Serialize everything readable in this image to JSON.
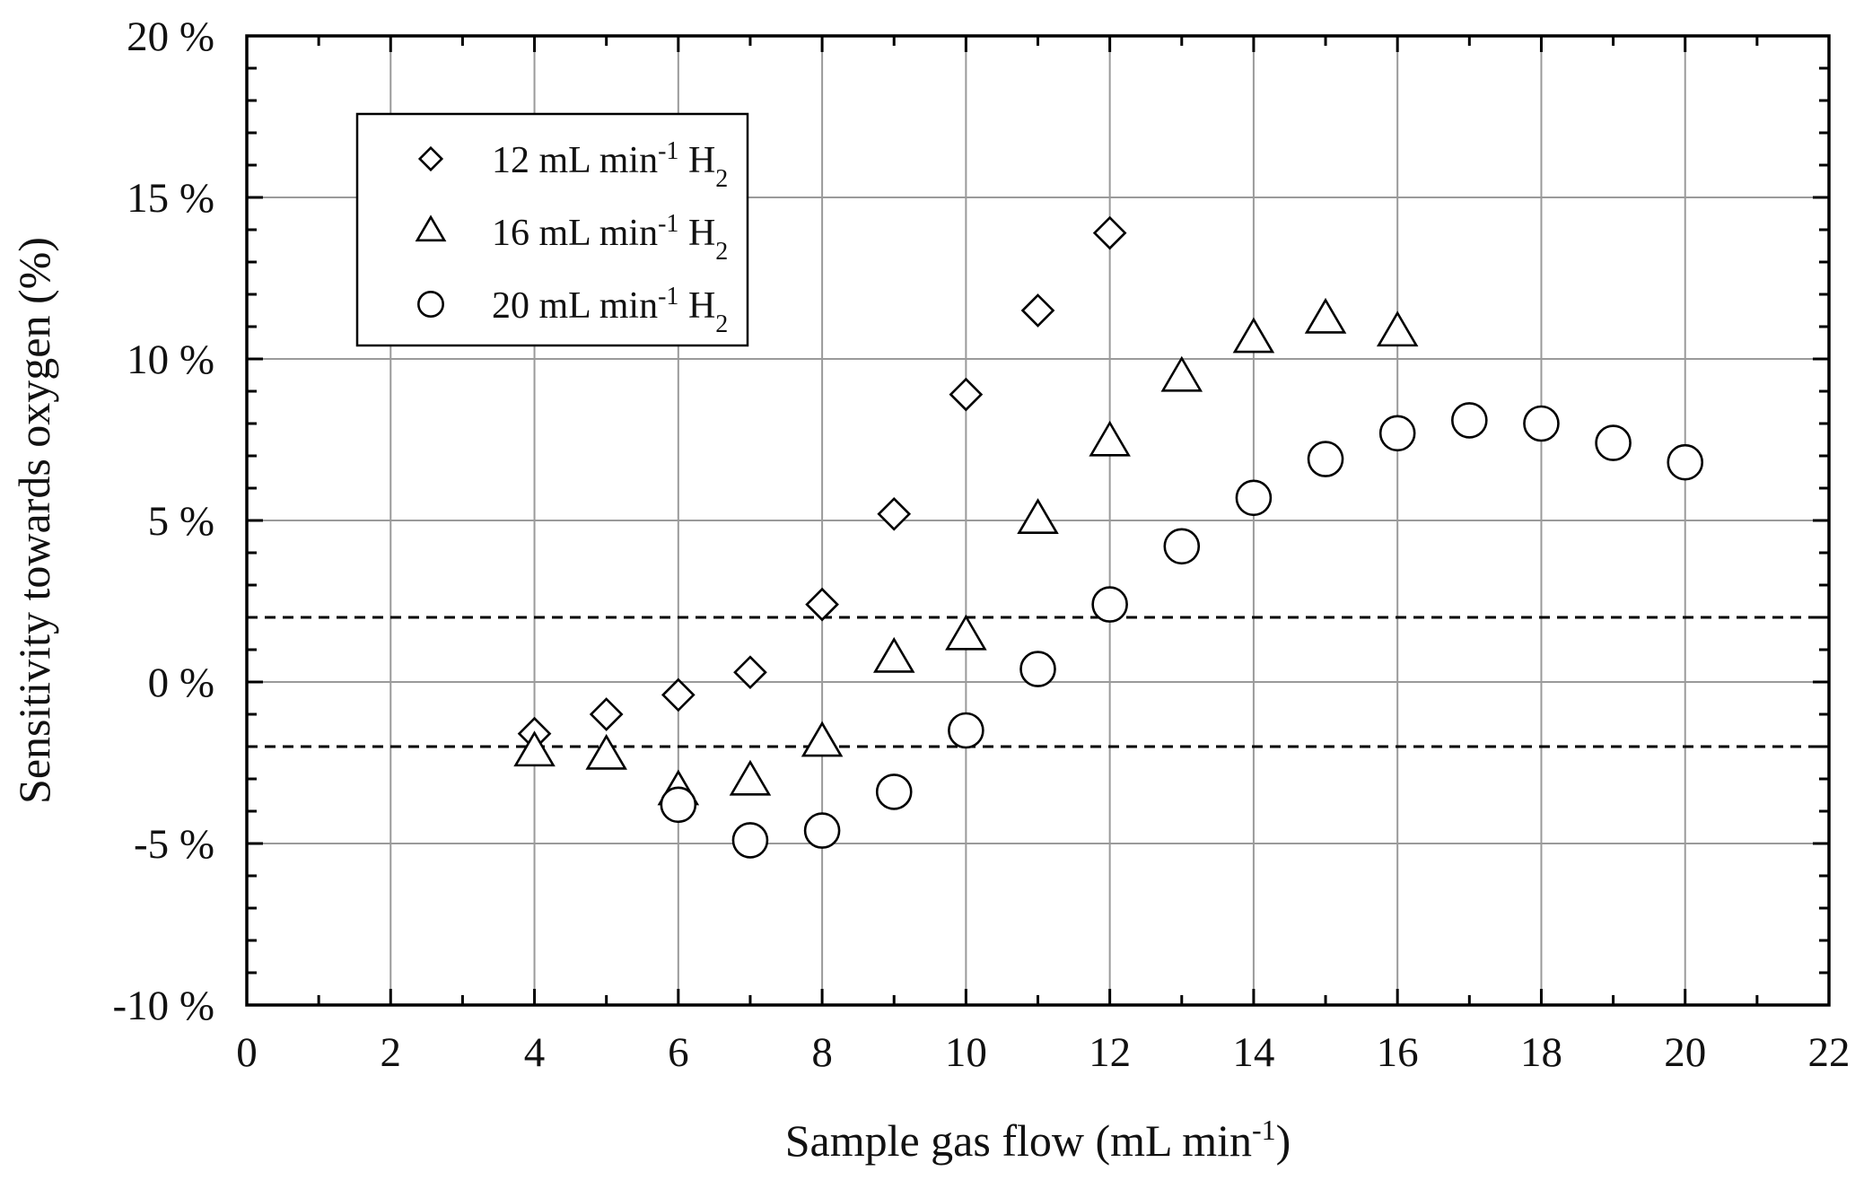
{
  "chart_data": {
    "type": "scatter",
    "xlabel": "Sample gas flow (mL min-1)",
    "ylabel": "Sensitivity towards oxygen (%)",
    "xlim": [
      0,
      22
    ],
    "ylim": [
      -10,
      20
    ],
    "x_major_ticks": [
      0,
      2,
      4,
      6,
      8,
      10,
      12,
      14,
      16,
      18,
      20,
      22
    ],
    "x_minor_step": 1,
    "y_major_ticks": [
      -10,
      -5,
      0,
      5,
      10,
      15,
      20
    ],
    "y_minor_step": 1,
    "y_tick_suffix": " %",
    "grid": true,
    "legend_position": "top-left",
    "reference_lines": [
      {
        "axis": "y",
        "value": 2,
        "style": "dashed"
      },
      {
        "axis": "y",
        "value": -2,
        "style": "dashed"
      }
    ],
    "series": [
      {
        "name": "12 mL min-1 H2",
        "legend_parts": [
          "12 mL min",
          "-1",
          " H",
          "2"
        ],
        "marker": "diamond",
        "x": [
          4,
          5,
          6,
          7,
          8,
          9,
          10,
          11,
          12
        ],
        "y": [
          -1.6,
          -1.0,
          -0.4,
          0.3,
          2.4,
          5.2,
          8.9,
          11.5,
          13.9
        ]
      },
      {
        "name": "16 mL min-1 H2",
        "legend_parts": [
          "16 mL min",
          "-1",
          " H",
          "2"
        ],
        "marker": "triangle",
        "x": [
          4,
          5,
          6,
          7,
          8,
          9,
          10,
          11,
          12,
          13,
          14,
          15,
          16
        ],
        "y": [
          -2.2,
          -2.3,
          -3.4,
          -3.1,
          -1.9,
          0.7,
          1.4,
          5.0,
          7.4,
          9.4,
          10.6,
          11.2,
          10.8
        ]
      },
      {
        "name": "20 mL min-1 H2",
        "legend_parts": [
          "20 mL min",
          "-1",
          " H",
          "2"
        ],
        "marker": "circle",
        "x": [
          6,
          7,
          8,
          9,
          10,
          11,
          12,
          13,
          14,
          15,
          16,
          17,
          18,
          19,
          20
        ],
        "y": [
          -3.8,
          -4.9,
          -4.6,
          -3.4,
          -1.5,
          0.4,
          2.4,
          4.2,
          5.7,
          6.9,
          7.7,
          8.1,
          8.0,
          7.4,
          6.8
        ]
      }
    ]
  }
}
